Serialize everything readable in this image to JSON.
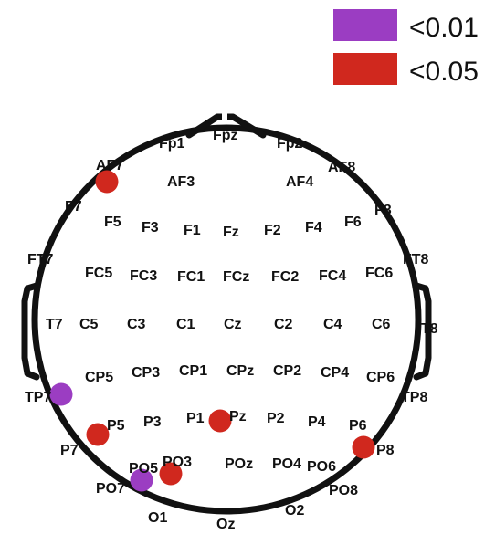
{
  "legend": [
    {
      "label": "<0.01",
      "color": "#9b3dc2"
    },
    {
      "label": "<0.05",
      "color": "#d0281e"
    }
  ],
  "electrodes": [
    {
      "label": "Fp1"
    },
    {
      "label": "Fpz"
    },
    {
      "label": "Fp2"
    },
    {
      "label": "AF7"
    },
    {
      "label": "AF3"
    },
    {
      "label": "AF4"
    },
    {
      "label": "AF8"
    },
    {
      "label": "F7"
    },
    {
      "label": "F5"
    },
    {
      "label": "F3"
    },
    {
      "label": "F1"
    },
    {
      "label": "Fz"
    },
    {
      "label": "F2"
    },
    {
      "label": "F4"
    },
    {
      "label": "F6"
    },
    {
      "label": "F8"
    },
    {
      "label": "FT7"
    },
    {
      "label": "FC5"
    },
    {
      "label": "FC3"
    },
    {
      "label": "FC1"
    },
    {
      "label": "FCz"
    },
    {
      "label": "FC2"
    },
    {
      "label": "FC4"
    },
    {
      "label": "FC6"
    },
    {
      "label": "FT8"
    },
    {
      "label": "T7"
    },
    {
      "label": "C5"
    },
    {
      "label": "C3"
    },
    {
      "label": "C1"
    },
    {
      "label": "Cz"
    },
    {
      "label": "C2"
    },
    {
      "label": "C4"
    },
    {
      "label": "C6"
    },
    {
      "label": "T8"
    },
    {
      "label": "TP7"
    },
    {
      "label": "CP5"
    },
    {
      "label": "CP3"
    },
    {
      "label": "CP1"
    },
    {
      "label": "CPz"
    },
    {
      "label": "CP2"
    },
    {
      "label": "CP4"
    },
    {
      "label": "CP6"
    },
    {
      "label": "TP8"
    },
    {
      "label": "P7"
    },
    {
      "label": "P5"
    },
    {
      "label": "P3"
    },
    {
      "label": "P1"
    },
    {
      "label": "Pz"
    },
    {
      "label": "P2"
    },
    {
      "label": "P4"
    },
    {
      "label": "P6"
    },
    {
      "label": "P8"
    },
    {
      "label": "PO7"
    },
    {
      "label": "PO5"
    },
    {
      "label": "PO3"
    },
    {
      "label": "POz"
    },
    {
      "label": "PO4"
    },
    {
      "label": "PO6"
    },
    {
      "label": "PO8"
    },
    {
      "label": "O1"
    },
    {
      "label": "Oz"
    },
    {
      "label": "O2"
    }
  ],
  "significant": [
    {
      "electrode": "AF7",
      "level": "<0.05"
    },
    {
      "electrode": "TP7",
      "level": "<0.01"
    },
    {
      "electrode": "P5",
      "level": "<0.05"
    },
    {
      "electrode": "P1",
      "level": "<0.05"
    },
    {
      "electrode": "P8",
      "level": "<0.05"
    },
    {
      "electrode": "PO5",
      "level": "<0.01"
    },
    {
      "electrode": "PO3",
      "level": "<0.05"
    }
  ]
}
